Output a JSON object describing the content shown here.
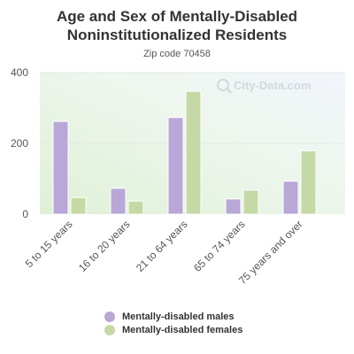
{
  "chart_data": {
    "type": "bar",
    "title": "Age and Sex of Mentally-Disabled Noninstitutionalized Residents",
    "subtitle": "Zip code 70458",
    "categories": [
      "5 to 15 years",
      "16 to 20 years",
      "21 to 64 years",
      "65 to 74 years",
      "75 years and over"
    ],
    "series": [
      {
        "name": "Mentally-disabled males",
        "values": [
          262,
          73,
          273,
          43,
          93
        ],
        "color": "#b9a7d8"
      },
      {
        "name": "Mentally-disabled females",
        "values": [
          47,
          37,
          347,
          68,
          179
        ],
        "color": "#c5d9a6"
      }
    ],
    "ylim": [
      0,
      400
    ],
    "yticks": [
      "0",
      "200",
      "400"
    ],
    "legend_position": "bottom",
    "grid": true
  },
  "watermark": "City-Data.com"
}
